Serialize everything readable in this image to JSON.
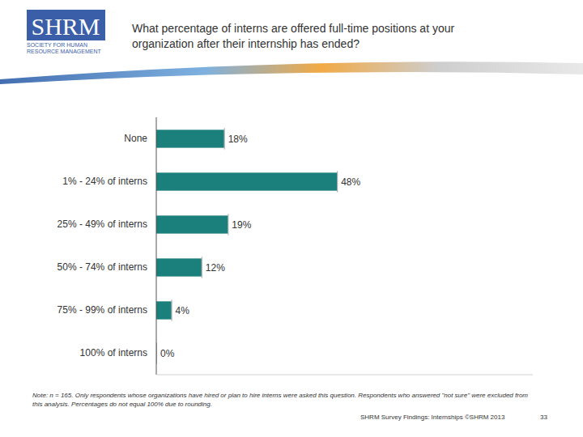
{
  "logo": {
    "text": "SHRM",
    "lines": [
      "SOCIETY FOR HUMAN",
      "RESOURCE MANAGEMENT"
    ]
  },
  "chart_data": {
    "type": "bar",
    "orientation": "horizontal",
    "title": "What percentage of interns are offered full-time positions at your organization after their internship has ended?",
    "categories": [
      "None",
      "1% - 24% of interns",
      "25% - 49% of interns",
      "50% - 74% of interns",
      "75% - 99% of interns",
      "100% of interns"
    ],
    "values": [
      18,
      48,
      19,
      12,
      4,
      0
    ],
    "value_labels": [
      "18%",
      "48%",
      "19%",
      "12%",
      "4%",
      "0%"
    ],
    "data_labels": true,
    "color": "#1b7f7c",
    "xlim": [
      0,
      100
    ],
    "tick_labels": "y",
    "annotations": [
      "Note: n = 165. Only respondents whose organizations have hired or plan to hire interns were asked this question. Respondents who answered \"not sure\" were excluded from this analysis. Percentages do not equal 100% due to rounding."
    ]
  },
  "footer": {
    "text": "SHRM Survey Findings: Internships ©SHRM 2013",
    "page": "33"
  }
}
